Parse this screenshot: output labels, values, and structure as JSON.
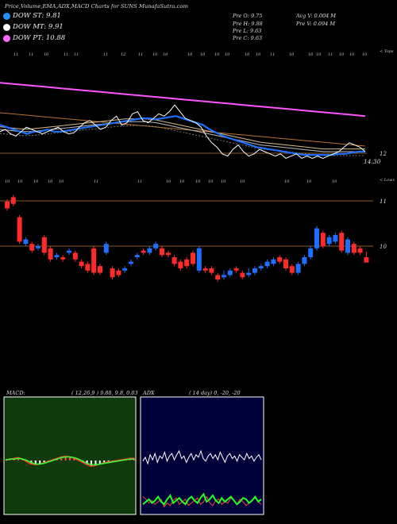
{
  "header": {
    "title": "Price,Volume,EMA,ADX,MACD Charts for SUNS MunafaSutra.com",
    "legend": [
      {
        "label": "DOW ST: 9.81",
        "color": "#1e90ff"
      },
      {
        "label": "DOW MT: 9.91",
        "color": "#ffffff"
      },
      {
        "label": "DOW PT: 10.88",
        "color": "#ff66ff"
      }
    ],
    "ohlc": {
      "open": "Pre O: 9.75",
      "high": "Pre H: 9.88",
      "low": "Pre L: 9.63",
      "close": "Pre C: 9.63"
    },
    "volume": {
      "avg": "Avg V: 0.004 M",
      "prev": "Pre V: 0.094 M"
    }
  },
  "ema_panel": {
    "corner_label": "< Tops",
    "marker_text": [
      "11",
      "11",
      "10",
      "11",
      "11",
      "11",
      "12",
      "11",
      "10",
      "10",
      "10",
      "10",
      "10",
      "10",
      "10",
      "10",
      "11",
      "10",
      "10",
      "10",
      "10",
      "11",
      "10",
      "10"
    ],
    "price_labels": [
      {
        "text": "12"
      },
      {
        "text": "14.30"
      }
    ]
  },
  "candle_panel": {
    "corner_label": "< Lows",
    "marker_text": [
      "10",
      "10",
      "10",
      "10",
      "10",
      "11",
      "11",
      "10",
      "10",
      "10",
      "10",
      "10",
      "10",
      "10",
      "10",
      "10"
    ],
    "price_labels": [
      {
        "text": "11"
      },
      {
        "text": "10"
      }
    ]
  },
  "macd_panel": {
    "label": "MACD:",
    "params": "( 12,26,9 ) 9.88, 9.8, 0.03",
    "bg": "#0e3a0e"
  },
  "adx_panel": {
    "label": "ADX",
    "params": "( 14 day) 0, -20, -20",
    "bg": "#00003a"
  },
  "chart_data": {
    "type": "line",
    "ema_price": [
      11.0,
      11.1,
      10.9,
      10.8,
      11.0,
      11.2,
      11.1,
      11.0,
      10.9,
      11.0,
      11.1,
      11.2,
      11.0,
      10.9,
      10.95,
      11.2,
      11.4,
      11.5,
      11.3,
      11.1,
      11.2,
      11.5,
      11.7,
      11.3,
      11.4,
      11.8,
      11.9,
      11.5,
      11.4,
      11.6,
      11.8,
      11.7,
      11.9,
      12.2,
      11.9,
      11.6,
      11.5,
      11.4,
      11.2,
      10.8,
      10.5,
      10.3,
      10.0,
      9.9,
      10.2,
      10.4,
      10.1,
      9.9,
      10.0,
      10.2,
      10.1,
      10.0,
      9.9,
      10.0,
      9.8,
      9.9,
      10.0,
      9.8,
      9.9,
      9.8,
      9.9,
      9.8,
      9.9,
      10.0,
      10.1,
      10.3,
      10.5,
      10.4,
      10.3,
      10.1
    ],
    "ema_short": [
      11.3,
      11.2,
      11.1,
      11.0,
      10.9,
      11.0,
      11.0,
      11.1,
      11.0,
      11.0,
      11.05,
      11.1,
      11.15,
      11.2,
      11.25,
      11.3,
      11.35,
      11.4,
      11.45,
      11.5,
      11.55,
      11.6,
      11.6,
      11.55,
      11.6,
      11.65,
      11.7,
      11.6,
      11.5,
      11.4,
      11.3,
      11.1,
      10.95,
      10.8,
      10.7,
      10.6,
      10.5,
      10.4,
      10.3,
      10.25,
      10.2,
      10.15,
      10.1,
      10.05,
      10.0,
      9.95,
      9.95,
      9.95,
      9.95,
      9.95,
      10.0,
      10.0,
      10.05,
      10.1,
      10.1
    ],
    "ema_mid": [
      11.1,
      11.05,
      11.0,
      11.0,
      11.05,
      11.1,
      11.15,
      11.2,
      11.25,
      11.3,
      11.35,
      11.4,
      11.45,
      11.45,
      11.45,
      11.4,
      11.3,
      11.2,
      11.1,
      11.0,
      10.9,
      10.8,
      10.7,
      10.6,
      10.5,
      10.4,
      10.35,
      10.3,
      10.25,
      10.2,
      10.15,
      10.1,
      10.1,
      10.1,
      10.1,
      10.1
    ],
    "ema_long": [
      13.2,
      13.15,
      13.1,
      13.05,
      13.0,
      12.95,
      12.9,
      12.85,
      12.8,
      12.75,
      12.7,
      12.65,
      12.6,
      12.55,
      12.5,
      12.45,
      12.4,
      12.35,
      12.3,
      12.25,
      12.2,
      12.15,
      12.1,
      12.05,
      12.0,
      11.95,
      11.9,
      11.85,
      11.8,
      11.75,
      11.7
    ],
    "candles": [
      [
        11.0,
        10.85,
        11.05,
        10.8
      ],
      [
        11.1,
        10.95,
        11.15,
        10.9
      ],
      [
        10.65,
        10.1,
        10.7,
        10.05
      ],
      [
        10.05,
        10.15,
        10.2,
        10.0
      ],
      [
        10.05,
        9.9,
        10.1,
        9.85
      ],
      [
        9.95,
        10.0,
        10.05,
        9.9
      ],
      [
        10.2,
        9.85,
        10.25,
        9.8
      ],
      [
        9.95,
        9.7,
        10.0,
        9.65
      ],
      [
        9.75,
        9.8,
        9.85,
        9.7
      ],
      [
        9.75,
        9.7,
        9.8,
        9.65
      ],
      [
        9.85,
        9.9,
        9.95,
        9.8
      ],
      [
        9.85,
        9.7,
        9.9,
        9.65
      ],
      [
        9.65,
        9.55,
        9.7,
        9.5
      ],
      [
        9.6,
        9.45,
        9.65,
        9.4
      ],
      [
        9.95,
        9.4,
        10.0,
        9.35
      ],
      [
        9.55,
        9.4,
        9.6,
        9.35
      ],
      [
        9.85,
        10.05,
        10.1,
        9.8
      ],
      [
        9.5,
        9.3,
        9.55,
        9.25
      ],
      [
        9.45,
        9.35,
        9.5,
        9.3
      ],
      [
        9.45,
        9.5,
        9.55,
        9.4
      ],
      [
        9.6,
        9.65,
        9.7,
        9.55
      ],
      [
        9.75,
        9.8,
        9.85,
        9.7
      ],
      [
        9.9,
        9.85,
        9.95,
        9.8
      ],
      [
        9.85,
        9.95,
        10.0,
        9.8
      ],
      [
        9.95,
        10.05,
        10.1,
        9.9
      ],
      [
        9.95,
        9.8,
        10.0,
        9.75
      ],
      [
        9.85,
        9.8,
        9.9,
        9.75
      ],
      [
        9.75,
        9.6,
        9.8,
        9.55
      ],
      [
        9.65,
        9.5,
        9.7,
        9.45
      ],
      [
        9.7,
        9.55,
        9.75,
        9.5
      ],
      [
        9.85,
        9.6,
        9.9,
        9.55
      ],
      [
        9.45,
        9.95,
        10.0,
        9.4
      ],
      [
        9.5,
        9.45,
        9.55,
        9.4
      ],
      [
        9.5,
        9.4,
        9.55,
        9.35
      ],
      [
        9.35,
        9.25,
        9.4,
        9.2
      ],
      [
        9.3,
        9.35,
        9.45,
        9.25
      ],
      [
        9.35,
        9.45,
        9.5,
        9.3
      ],
      [
        9.5,
        9.45,
        9.55,
        9.4
      ],
      [
        9.4,
        9.3,
        9.45,
        9.25
      ],
      [
        9.35,
        9.4,
        9.5,
        9.3
      ],
      [
        9.4,
        9.5,
        9.55,
        9.35
      ],
      [
        9.5,
        9.55,
        9.6,
        9.45
      ],
      [
        9.55,
        9.65,
        9.7,
        9.5
      ],
      [
        9.6,
        9.7,
        9.75,
        9.55
      ],
      [
        9.75,
        9.65,
        9.8,
        9.6
      ],
      [
        9.7,
        9.5,
        9.75,
        9.45
      ],
      [
        9.55,
        9.4,
        9.6,
        9.35
      ],
      [
        9.4,
        9.6,
        9.65,
        9.35
      ],
      [
        9.6,
        9.75,
        9.8,
        9.55
      ],
      [
        9.75,
        9.95,
        10.0,
        9.7
      ],
      [
        9.95,
        10.4,
        10.45,
        9.9
      ],
      [
        10.3,
        10.0,
        10.35,
        9.95
      ],
      [
        10.05,
        10.2,
        10.25,
        10.0
      ],
      [
        10.1,
        10.25,
        10.3,
        10.05
      ],
      [
        10.3,
        9.9,
        10.35,
        9.85
      ],
      [
        9.85,
        10.15,
        10.2,
        9.8
      ],
      [
        10.05,
        9.85,
        10.1,
        9.8
      ],
      [
        9.95,
        9.85,
        10.0,
        9.8
      ],
      [
        9.75,
        9.63,
        9.88,
        9.63
      ]
    ],
    "macd": [
      0.0,
      0.02,
      0.03,
      0.04,
      0.02,
      -0.02,
      -0.05,
      -0.06,
      -0.05,
      -0.03,
      -0.01,
      0.01,
      0.03,
      0.05,
      0.06,
      0.05,
      0.03,
      0.0,
      -0.03,
      -0.06,
      -0.08,
      -0.07,
      -0.05,
      -0.03,
      -0.02,
      -0.01,
      0.0,
      0.01,
      0.02,
      0.03,
      0.03
    ],
    "macd_signal": [
      0.01,
      0.02,
      0.02,
      0.03,
      0.02,
      0.0,
      -0.03,
      -0.05,
      -0.05,
      -0.04,
      -0.02,
      0.0,
      0.02,
      0.04,
      0.05,
      0.05,
      0.04,
      0.02,
      -0.01,
      -0.04,
      -0.06,
      -0.06,
      -0.05,
      -0.04,
      -0.03,
      -0.02,
      -0.01,
      0.0,
      0.01,
      0.02,
      0.02
    ],
    "adx_line": [
      42,
      45,
      40,
      47,
      43,
      48,
      41,
      46,
      44,
      49,
      42,
      46,
      48,
      43,
      47,
      50,
      44,
      46,
      41,
      45,
      48,
      43,
      47,
      45,
      50,
      44,
      42,
      46,
      48,
      44,
      47,
      43,
      49,
      45,
      41,
      46,
      48,
      44,
      46,
      42,
      47,
      45,
      43,
      48,
      44,
      46,
      42,
      45,
      47,
      43
    ],
    "di_plus": [
      8,
      10,
      12,
      9,
      11,
      14,
      10,
      8,
      12,
      15,
      9,
      11,
      13,
      10,
      8,
      12,
      14,
      11,
      9,
      13,
      16,
      10,
      12,
      15,
      11,
      9,
      13,
      10,
      12,
      14,
      11,
      8,
      10,
      13,
      12,
      9,
      11,
      14,
      10,
      12
    ],
    "di_minus": [
      14,
      12,
      9,
      11,
      8,
      10,
      12,
      6,
      9,
      7,
      11,
      13,
      8,
      10,
      12,
      7,
      9,
      11,
      13,
      8,
      10,
      14,
      9,
      7,
      11,
      12,
      8,
      10,
      9,
      13,
      11,
      8,
      12,
      10,
      7,
      9,
      11,
      13,
      10,
      8
    ]
  }
}
